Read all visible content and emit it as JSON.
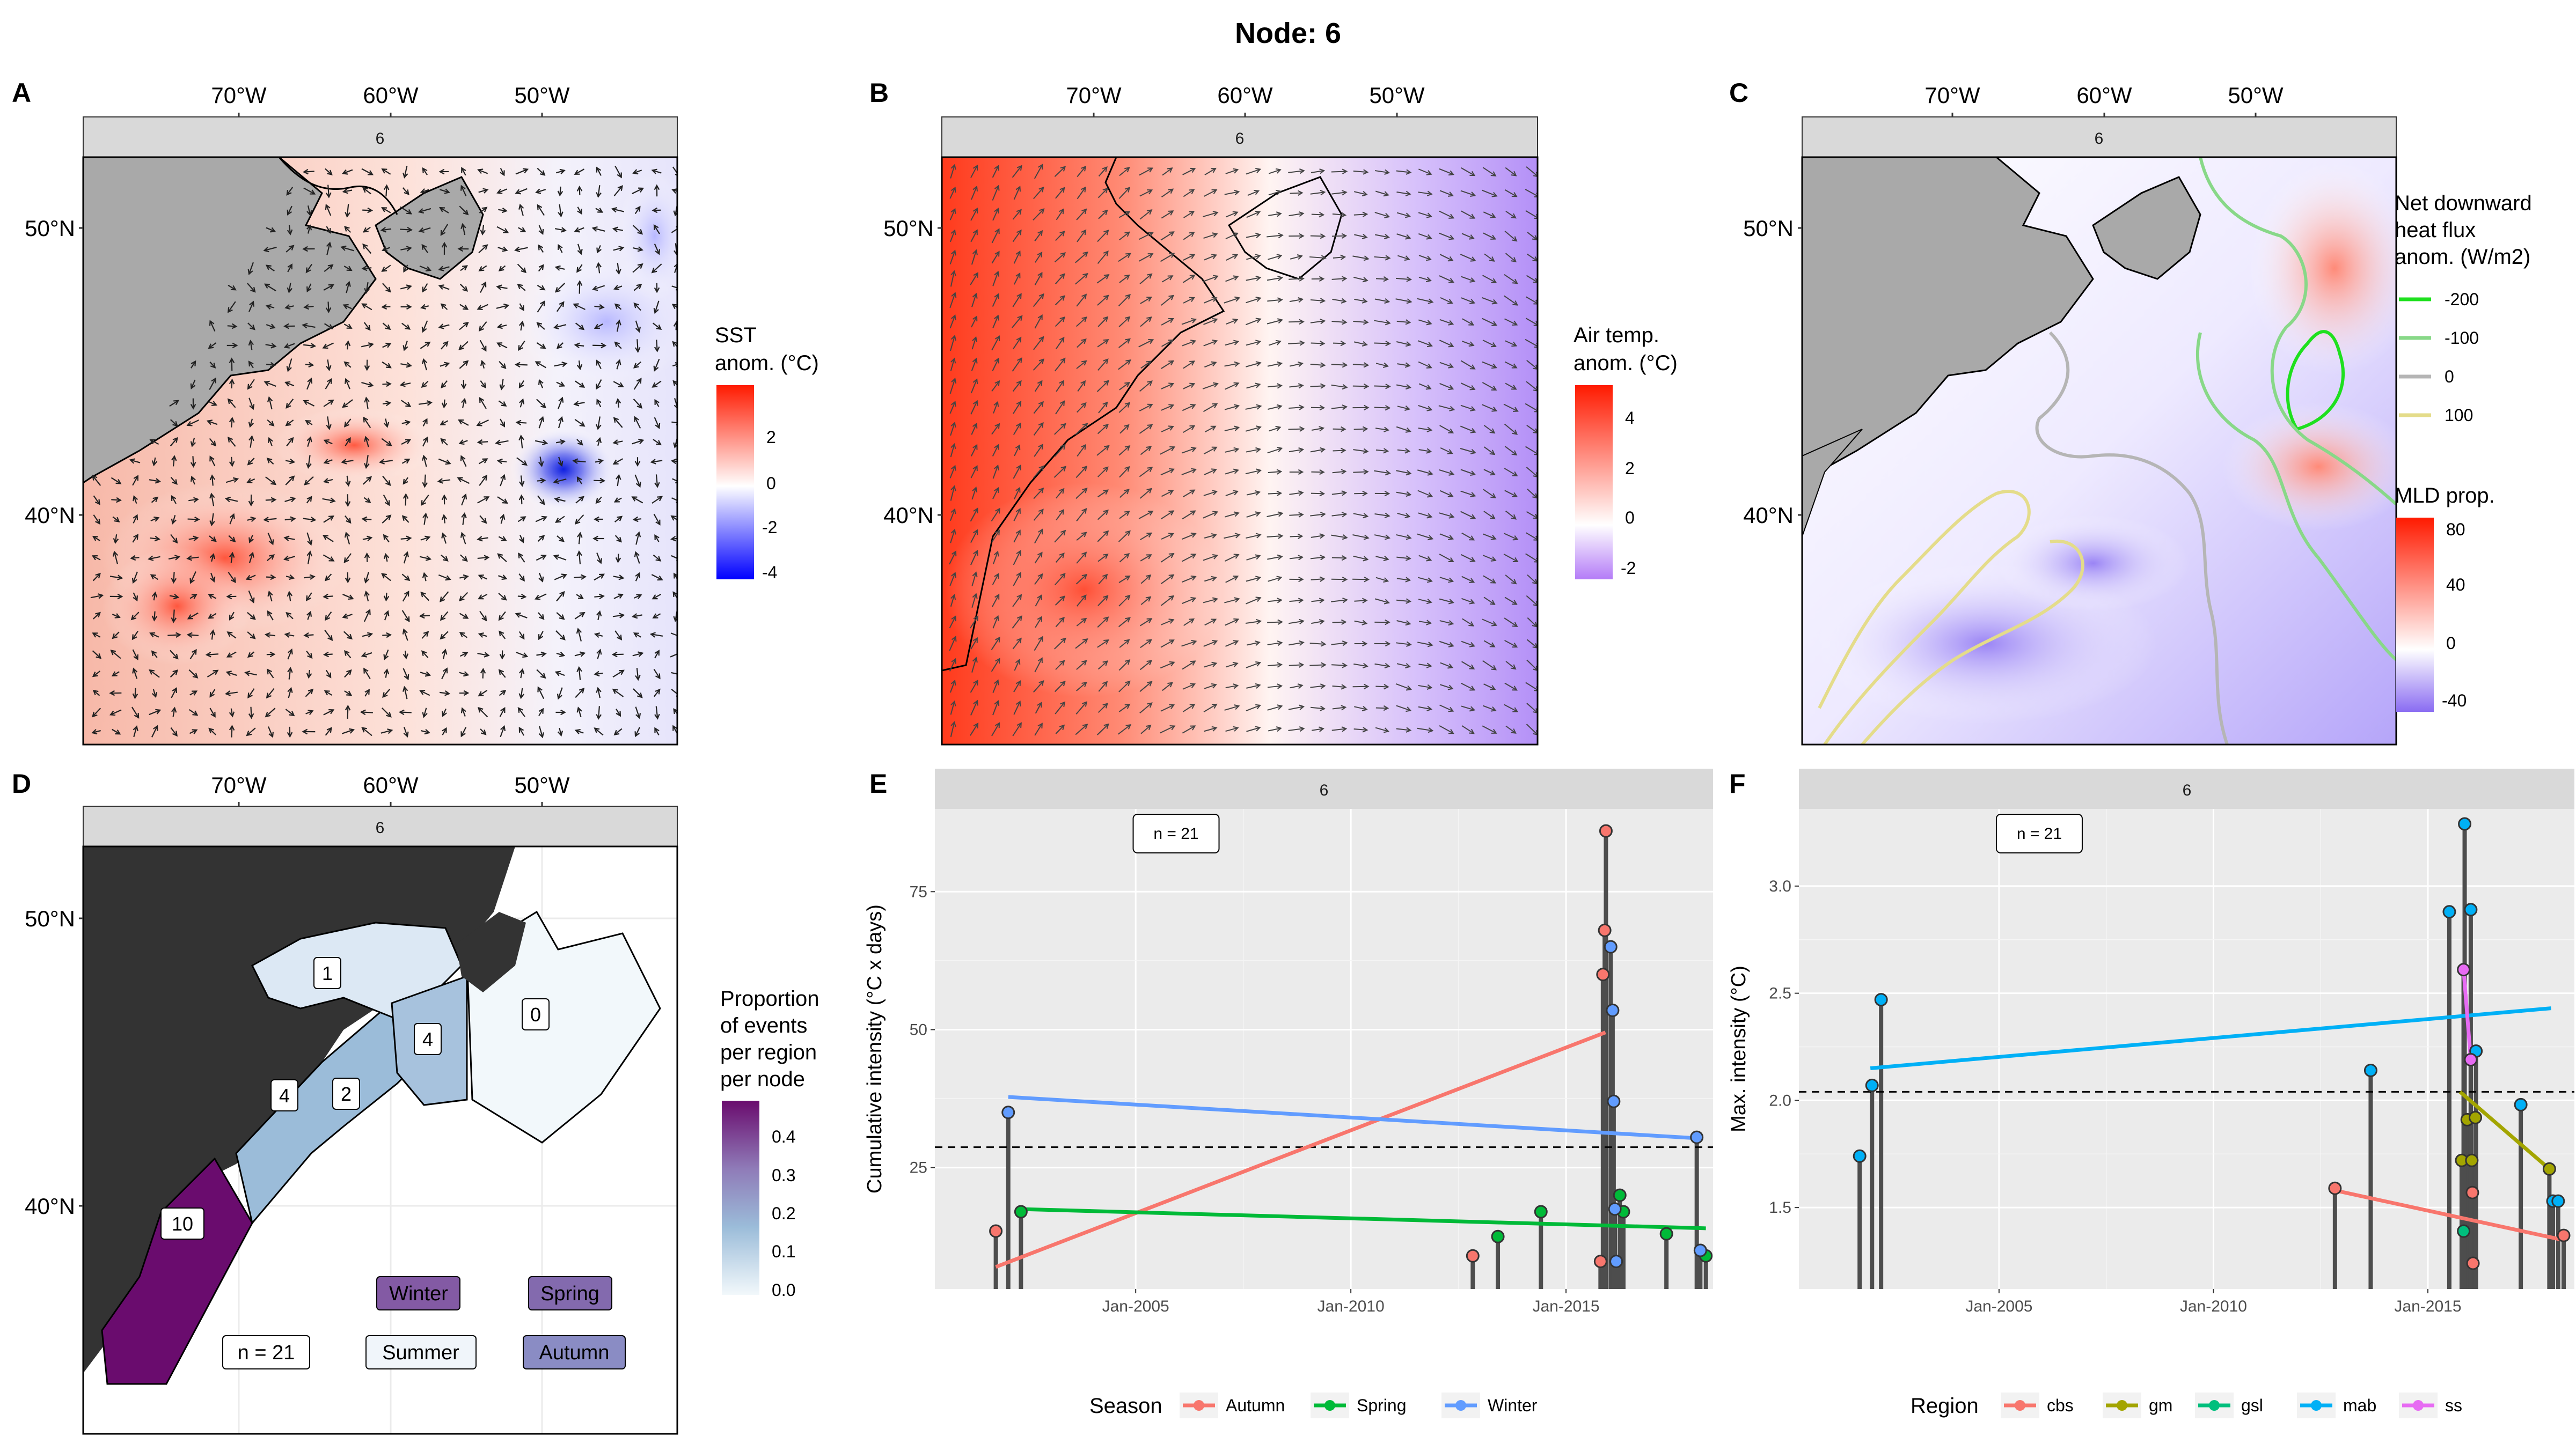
{
  "figure": {
    "title": "Node: 6"
  },
  "panels": {
    "A": {
      "letter": "A",
      "strip": "6"
    },
    "B": {
      "letter": "B",
      "strip": "6"
    },
    "C": {
      "letter": "C",
      "strip": "6"
    },
    "D": {
      "letter": "D",
      "strip": "6"
    },
    "E": {
      "letter": "E",
      "strip": "6"
    },
    "F": {
      "letter": "F",
      "strip": "6"
    }
  },
  "map_axes": {
    "lon_ticks": [
      "70°W",
      "60°W",
      "50°W"
    ],
    "lat_ticks": [
      "50°N",
      "40°N"
    ]
  },
  "legends": {
    "A": {
      "title": [
        "SST",
        "anom. (°C)"
      ],
      "ticks": [
        "2",
        "0",
        "-2",
        "-4"
      ],
      "colors": [
        "#ff1a00",
        "#ffffff",
        "#0000ff"
      ]
    },
    "B": {
      "title": [
        "Air temp.",
        "anom. (°C)"
      ],
      "ticks": [
        "4",
        "2",
        "0",
        "-2"
      ],
      "colors": [
        "#ff1a00",
        "#ffffff",
        "#b47cf7"
      ]
    },
    "C": {
      "flux_title": [
        "Net downward",
        "heat flux",
        "anom. (W/m2)"
      ],
      "flux_items": [
        {
          "label": "-200",
          "color": "#1ee01e"
        },
        {
          "label": "-100",
          "color": "#88d888"
        },
        {
          "label": "0",
          "color": "#b5b5b5"
        },
        {
          "label": "100",
          "color": "#e4dc8a"
        }
      ],
      "mld_title": [
        "MLD prop."
      ],
      "mld_ticks": [
        "80",
        "40",
        "0",
        "-40"
      ],
      "colors": [
        "#ff1a00",
        "#ffffff",
        "#8a6cf2"
      ]
    },
    "D": {
      "title": [
        "Proportion",
        "of events",
        "per region",
        "per node"
      ],
      "ticks": [
        "0.4",
        "0.3",
        "0.2",
        "0.1",
        "0.0"
      ],
      "colors": [
        "#6a0c6e",
        "#8f7bb8",
        "#9bbcd9",
        "#f2f8fb"
      ]
    }
  },
  "panel_D": {
    "region_labels": [
      "1",
      "4",
      "0",
      "4",
      "2",
      "10"
    ],
    "n_label": "n = 21",
    "season_boxes": [
      {
        "label": "Winter",
        "color": "#835aa4"
      },
      {
        "label": "Spring",
        "color": "#836aae"
      },
      {
        "label": "Summer",
        "color": "#f0f5fa"
      },
      {
        "label": "Autumn",
        "color": "#8a8cc4"
      }
    ]
  },
  "chart_data": [
    {
      "panel": "E",
      "type": "scatter",
      "xlabel": "",
      "ylabel": "Cumulative intensity (°C x days)",
      "x_ticks": [
        "Jan-2005",
        "Jan-2010",
        "Jan-2015"
      ],
      "y_ticks": [
        25,
        50,
        75
      ],
      "xlim": [
        "2000-05-01",
        "2018-06-01"
      ],
      "ylim": [
        3,
        90
      ],
      "n_label": "n = 21",
      "reference_line_y": 28.7,
      "legend_title": "Season",
      "series": [
        {
          "name": "Autumn",
          "color": "#f8766d",
          "points": [
            [
              "2001-10-01",
              13.5
            ],
            [
              "2012-11-01",
              9
            ],
            [
              "2015-10-20",
              8
            ],
            [
              "2015-11-10",
              60
            ],
            [
              "2015-11-25",
              68
            ],
            [
              "2015-12-05",
              86
            ]
          ],
          "trend": [
            [
              "2001-10-01",
              7
            ],
            [
              "2015-12-01",
              49.5
            ]
          ]
        },
        {
          "name": "Spring",
          "color": "#00ba38",
          "points": [
            [
              "2002-05-01",
              17
            ],
            [
              "2013-06-01",
              12.5
            ],
            [
              "2014-06-01",
              17
            ],
            [
              "2016-04-01",
              20
            ],
            [
              "2016-05-01",
              17
            ],
            [
              "2017-05-01",
              13
            ],
            [
              "2018-04-01",
              9
            ]
          ],
          "trend": [
            [
              "2002-04-01",
              17.5
            ],
            [
              "2018-04-01",
              14
            ]
          ]
        },
        {
          "name": "Winter",
          "color": "#619cff",
          "points": [
            [
              "2002-01-15",
              35
            ],
            [
              "2016-01-15",
              65
            ],
            [
              "2016-02-01",
              53.5
            ],
            [
              "2016-02-10",
              37
            ],
            [
              "2016-02-20",
              17.5
            ],
            [
              "2016-03-01",
              8
            ],
            [
              "2018-01-15",
              30.5
            ],
            [
              "2018-02-15",
              10
            ]
          ],
          "trend": [
            [
              "2002-01-15",
              37.8
            ],
            [
              "2018-02-01",
              30.3
            ]
          ]
        }
      ]
    },
    {
      "panel": "F",
      "type": "scatter",
      "xlabel": "",
      "ylabel": "Max. intensity (°C)",
      "x_ticks": [
        "Jan-2005",
        "Jan-2010",
        "Jan-2015"
      ],
      "y_ticks": [
        1.5,
        2.0,
        2.5,
        3.0
      ],
      "xlim": [
        "2000-05-01",
        "2018-06-01"
      ],
      "ylim": [
        1.12,
        3.36
      ],
      "n_label": "n = 21",
      "reference_line_y": 2.04,
      "legend_title": "Region",
      "series": [
        {
          "name": "cbs",
          "color": "#f8766d",
          "points": [
            [
              "2012-11-01",
              1.59
            ],
            [
              "2016-01-15",
              1.57
            ],
            [
              "2016-01-20",
              1.24
            ],
            [
              "2018-03-01",
              1.37
            ]
          ],
          "trend": [
            [
              "2012-11-01",
              1.58
            ],
            [
              "2018-02-15",
              1.35
            ]
          ]
        },
        {
          "name": "gm",
          "color": "#a3a500",
          "points": [
            [
              "2015-10-15",
              1.72
            ],
            [
              "2015-12-01",
              1.91
            ],
            [
              "2016-01-10",
              1.72
            ],
            [
              "2016-02-10",
              1.92
            ],
            [
              "2017-11-01",
              1.68
            ]
          ],
          "trend": [
            [
              "2015-10-01",
              2.04
            ],
            [
              "2017-11-01",
              1.68
            ]
          ]
        },
        {
          "name": "gsl",
          "color": "#00bf7d",
          "points": [
            [
              "2015-11-01",
              1.39
            ]
          ],
          "trend": []
        },
        {
          "name": "mab",
          "color": "#00b0f6",
          "points": [
            [
              "2001-10-01",
              1.74
            ],
            [
              "2002-01-15",
              2.07
            ],
            [
              "2002-04-01",
              2.47
            ],
            [
              "2013-09-01",
              2.14
            ],
            [
              "2015-07-01",
              2.88
            ],
            [
              "2015-11-10",
              3.29
            ],
            [
              "2016-01-01",
              2.89
            ],
            [
              "2016-02-15",
              2.23
            ],
            [
              "2017-03-01",
              1.98
            ],
            [
              "2017-12-01",
              1.53
            ],
            [
              "2018-01-15",
              1.53
            ]
          ],
          "trend": [
            [
              "2002-01-01",
              2.15
            ],
            [
              "2017-11-15",
              2.43
            ]
          ]
        },
        {
          "name": "ss",
          "color": "#e76bf3",
          "points": [
            [
              "2015-11-01",
              2.61
            ],
            [
              "2016-01-01",
              2.19
            ]
          ],
          "trend": [
            [
              "2015-11-01",
              2.61
            ],
            [
              "2016-01-01",
              2.19
            ]
          ]
        }
      ]
    }
  ]
}
